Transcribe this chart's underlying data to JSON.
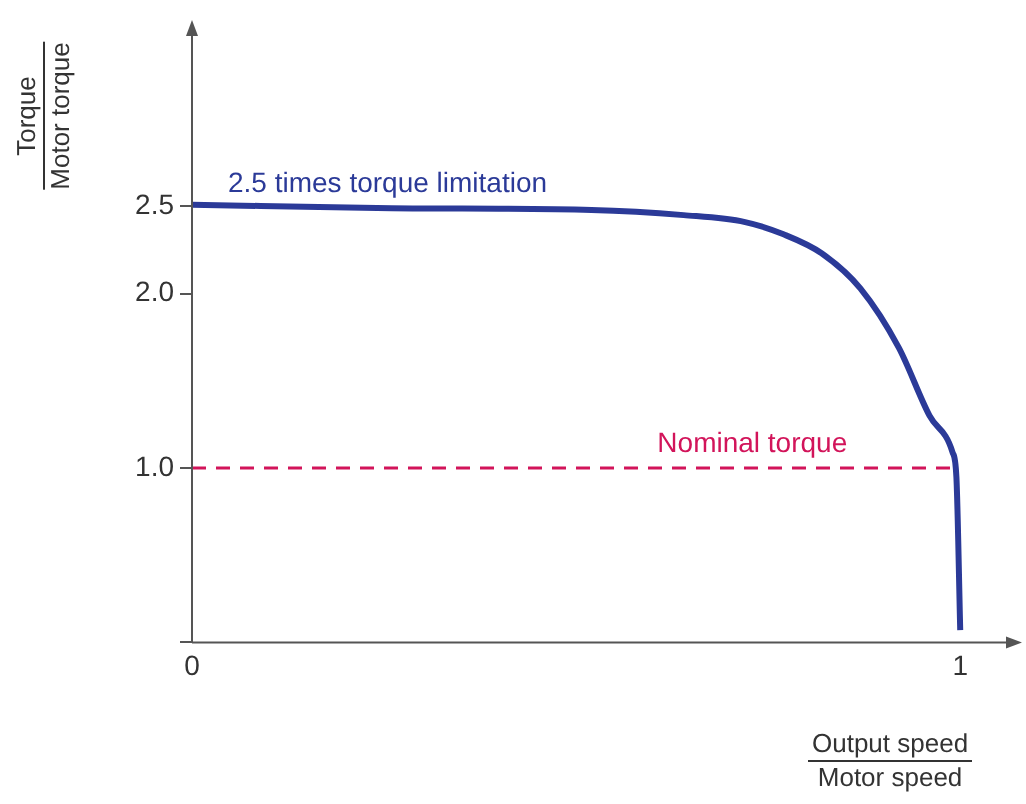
{
  "chart_data": {
    "type": "line",
    "xlabel": "Output speed\nMotor speed",
    "ylabel": "Torque\nMotor torque",
    "xlim": [
      0,
      1.07
    ],
    "ylim": [
      0,
      3.5
    ],
    "xticks": [
      {
        "value": 0,
        "label": "0"
      },
      1
    ],
    "yticks": [
      {
        "value": 0,
        "label": null
      },
      {
        "value": 1,
        "label": "1.0"
      },
      {
        "value": 2,
        "label": "2.0"
      },
      {
        "value": 2.5,
        "label": "2.5"
      }
    ],
    "grid": false,
    "legend": false,
    "marker": "none",
    "series": [
      {
        "name": "2.5 times torque limitation",
        "color": "#2b3a98",
        "line_style": "solid",
        "x": [
          0,
          0.26,
          0.52,
          0.64,
          0.72,
          0.77,
          0.82,
          0.87,
          0.92,
          0.96,
          0.99,
          0.995,
          1.0
        ],
        "values": [
          2.51,
          2.49,
          2.48,
          2.45,
          2.41,
          2.34,
          2.23,
          2.03,
          1.69,
          1.3,
          1.09,
          0.95,
          0.07
        ]
      },
      {
        "name": "Nominal torque",
        "color": "#d2145a",
        "line_style": "dashed",
        "x": [
          0,
          0.99
        ],
        "values": [
          1,
          1
        ]
      }
    ]
  }
}
